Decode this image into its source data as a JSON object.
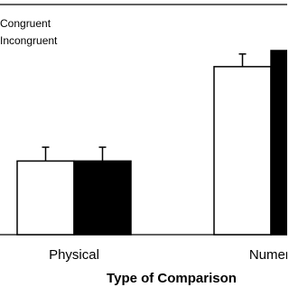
{
  "chart_data": {
    "type": "bar",
    "x_label": "Type of Comparison",
    "categories": [
      "Physical",
      "Numeri"
    ],
    "series": [
      {
        "name": "Congruent",
        "color": "#ffffff",
        "values": [
          32,
          73
        ],
        "errors": [
          6,
          5.5
        ]
      },
      {
        "name": "Incongruent",
        "color": "#000000",
        "values": [
          32,
          80
        ],
        "errors": [
          6,
          5
        ]
      }
    ],
    "ylim": [
      0,
      100
    ],
    "legend": "top-left"
  }
}
